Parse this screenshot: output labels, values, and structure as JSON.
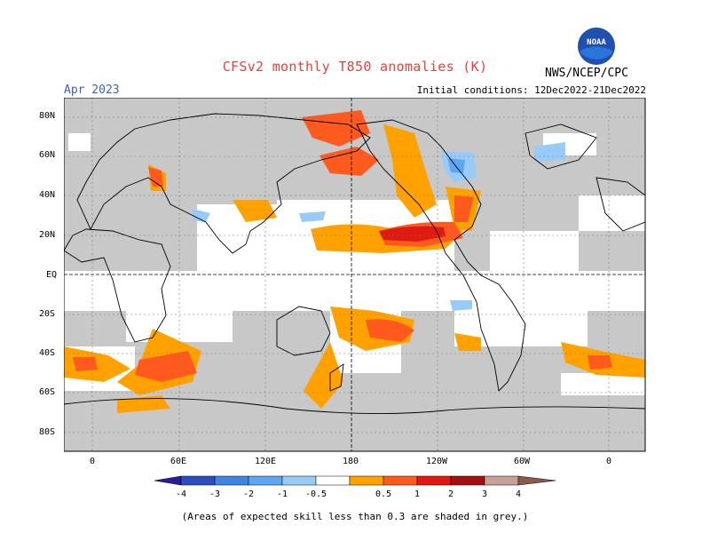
{
  "title": "CFSv2 monthly T850 anomalies (K)",
  "month": "Apr 2023",
  "initial_conditions": "Initial conditions: 12Dec2022-21Dec2022",
  "organization": "NWS/NCEP/CPC",
  "logo_text": "NOAA",
  "lat_labels": [
    "80N",
    "60N",
    "40N",
    "20N",
    "EQ",
    "20S",
    "40S",
    "60S",
    "80S"
  ],
  "lon_labels": [
    "0",
    "60E",
    "120E",
    "180",
    "120W",
    "60W",
    "0"
  ],
  "colorbar": {
    "tick_labels": [
      "-4",
      "-3",
      "-2",
      "-1",
      "-0.5",
      "0.5",
      "1",
      "2",
      "3",
      "4"
    ],
    "colors": [
      "#2a1a9e",
      "#2a4fc0",
      "#3f84e0",
      "#5ea6f0",
      "#98cbf8",
      "#ffffff",
      "#ffa200",
      "#ff5a1e",
      "#e01a10",
      "#a50f0f",
      "#c8a099",
      "#8c5a4a"
    ]
  },
  "footnote": "(Areas of expected skill less than 0.3 are shaded in grey.)",
  "colors": {
    "skill_grey": "#c8c8c8",
    "anom_0_5_1": "#ffa200",
    "anom_1_2": "#ff5a1e",
    "anom_2_3": "#e01a10",
    "anom_neg_0_5_1": "#98cbf8",
    "anom_neg_1_2": "#5ea6f0"
  }
}
